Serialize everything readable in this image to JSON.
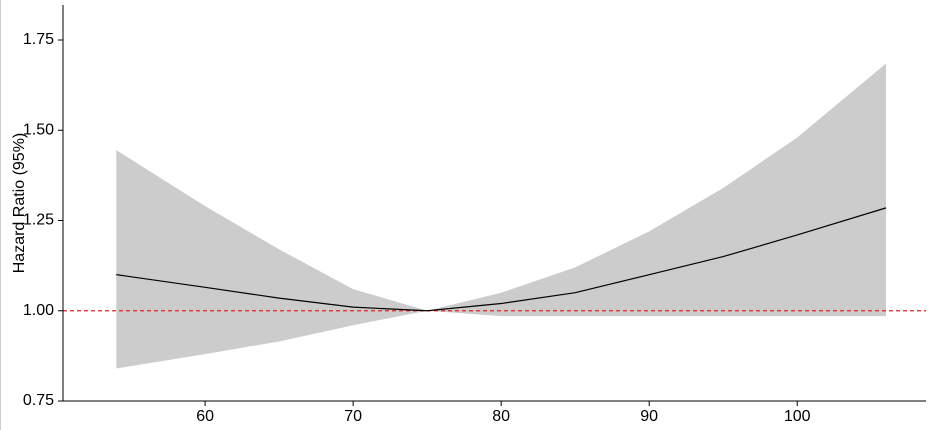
{
  "chart_data": {
    "type": "line",
    "y_label": "Hazard Ratio (95%)",
    "x": [
      54,
      60,
      65,
      70,
      75,
      80,
      85,
      90,
      95,
      100,
      106
    ],
    "values": [
      1.1,
      1.065,
      1.035,
      1.01,
      1.0,
      1.02,
      1.05,
      1.1,
      1.15,
      1.21,
      1.285
    ],
    "upper": [
      1.445,
      1.29,
      1.17,
      1.06,
      1.0,
      1.05,
      1.12,
      1.22,
      1.34,
      1.48,
      1.685
    ],
    "lower": [
      0.84,
      0.88,
      0.915,
      0.96,
      1.0,
      0.985,
      0.985,
      0.985,
      0.985,
      0.985,
      0.985
    ],
    "color": "#000000",
    "band_color": "#cccccc",
    "reference_line": 1,
    "reference_color": "#e8202a",
    "xlim": [
      50.4,
      108.7
    ],
    "xticks": [
      60,
      70,
      80,
      90,
      100
    ],
    "ylim": [
      0.75,
      1.847
    ],
    "yticks": [
      0.75,
      {
        "value": 1,
        "label": "1.00"
      },
      1.25,
      {
        "value": 1.5,
        "label": "1.50"
      },
      1.75
    ]
  }
}
